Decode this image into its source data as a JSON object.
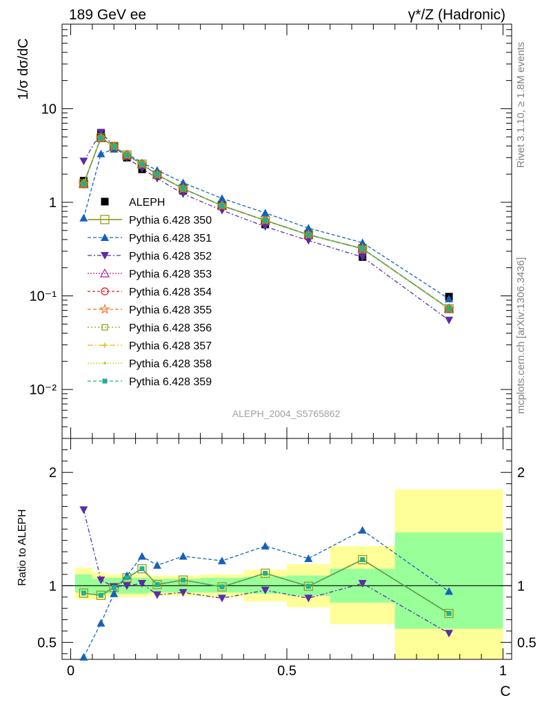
{
  "header": {
    "left": "189 GeV ee",
    "right": "γ*/Z (Hadronic)"
  },
  "side_text": {
    "top": "Rivet 3.1.10, ≥ 1.8M events",
    "bottom": "mcplots.cern.ch [arXiv:1306.3436]"
  },
  "watermark": "ALEPH_2004_S5765862",
  "chart_data": [
    {
      "type": "line",
      "panel": "main",
      "ylabel": "1/σ  dσ/dC",
      "yscale": "log",
      "ylim": [
        0.003,
        80
      ],
      "xlim": [
        -0.02,
        1.02
      ],
      "ytick_labels": [
        "10⁻²",
        "10⁻¹",
        "1",
        "10"
      ],
      "x": [
        0.03,
        0.07,
        0.1,
        0.13,
        0.165,
        0.2,
        0.26,
        0.35,
        0.45,
        0.55,
        0.675,
        0.875
      ],
      "series": [
        {
          "name": "ALEPH",
          "color": "#000000",
          "values": [
            1.7,
            5.4,
            4.0,
            3.0,
            2.25,
            1.95,
            1.33,
            0.93,
            0.58,
            0.45,
            0.26,
            0.098
          ]
        },
        {
          "name": "Pythia 6.428 350",
          "color": "#999922",
          "values": [
            1.58,
            4.9,
            3.95,
            3.2,
            2.55,
            1.97,
            1.4,
            0.92,
            0.64,
            0.45,
            0.32,
            0.073
          ]
        },
        {
          "name": "Pythia 6.428 351",
          "color": "#1560bd",
          "values": [
            0.68,
            3.3,
            3.7,
            3.3,
            2.65,
            2.2,
            1.62,
            1.1,
            0.77,
            0.53,
            0.37,
            0.093
          ]
        },
        {
          "name": "Pythia 6.428 352",
          "color": "#5a2ca8",
          "values": [
            2.75,
            5.6,
            3.98,
            3.0,
            2.3,
            1.8,
            1.23,
            0.82,
            0.55,
            0.39,
            0.26,
            0.055
          ]
        },
        {
          "name": "Pythia 6.428 353",
          "color": "#b01a8e",
          "values": [
            1.58,
            4.9,
            3.95,
            3.2,
            2.55,
            1.97,
            1.4,
            0.92,
            0.64,
            0.45,
            0.32,
            0.073
          ]
        },
        {
          "name": "Pythia 6.428 354",
          "color": "#e0191e",
          "values": [
            1.58,
            4.9,
            3.95,
            3.2,
            2.55,
            1.97,
            1.4,
            0.92,
            0.64,
            0.45,
            0.32,
            0.073
          ]
        },
        {
          "name": "Pythia 6.428 355",
          "color": "#f07020",
          "values": [
            1.58,
            4.9,
            3.95,
            3.2,
            2.55,
            1.97,
            1.4,
            0.92,
            0.64,
            0.45,
            0.32,
            0.073
          ]
        },
        {
          "name": "Pythia 6.428 356",
          "color": "#8a9a1a",
          "values": [
            1.58,
            4.9,
            3.95,
            3.2,
            2.55,
            1.97,
            1.4,
            0.92,
            0.64,
            0.45,
            0.32,
            0.073
          ]
        },
        {
          "name": "Pythia 6.428 357",
          "color": "#e8b800",
          "values": [
            1.58,
            4.9,
            3.95,
            3.2,
            2.55,
            1.97,
            1.4,
            0.92,
            0.64,
            0.45,
            0.32,
            0.073
          ]
        },
        {
          "name": "Pythia 6.428 358",
          "color": "#c8d020",
          "values": [
            1.58,
            4.9,
            3.95,
            3.2,
            2.55,
            1.97,
            1.4,
            0.92,
            0.64,
            0.45,
            0.32,
            0.073
          ]
        },
        {
          "name": "Pythia 6.428 359",
          "color": "#20b090",
          "values": [
            1.58,
            4.9,
            3.95,
            3.2,
            2.55,
            1.97,
            1.4,
            0.92,
            0.64,
            0.45,
            0.32,
            0.073
          ]
        }
      ]
    },
    {
      "type": "line",
      "panel": "ratio",
      "ylabel": "Ratio to ALEPH",
      "xlabel": "C",
      "ylim": [
        0.35,
        2.3
      ],
      "xlim": [
        -0.02,
        1.02
      ],
      "ytick_labels": [
        "0.5",
        "1",
        "2"
      ],
      "xtick_labels": [
        "0",
        "0.5",
        "1"
      ],
      "x": [
        0.03,
        0.07,
        0.1,
        0.13,
        0.165,
        0.2,
        0.26,
        0.35,
        0.45,
        0.55,
        0.675,
        0.875
      ],
      "bands": [
        {
          "x0": 0.01,
          "x1": 0.05,
          "stat": [
            0.94,
            1.1
          ],
          "total": [
            0.88,
            1.16
          ]
        },
        {
          "x0": 0.05,
          "x1": 0.08,
          "stat": [
            0.92,
            1.06
          ],
          "total": [
            0.88,
            1.12
          ]
        },
        {
          "x0": 0.08,
          "x1": 0.12,
          "stat": [
            0.93,
            1.07
          ],
          "total": [
            0.9,
            1.1
          ]
        },
        {
          "x0": 0.12,
          "x1": 0.15,
          "stat": [
            0.93,
            1.07
          ],
          "total": [
            0.9,
            1.1
          ]
        },
        {
          "x0": 0.15,
          "x1": 0.18,
          "stat": [
            0.93,
            1.07
          ],
          "total": [
            0.9,
            1.1
          ]
        },
        {
          "x0": 0.18,
          "x1": 0.22,
          "stat": [
            0.94,
            1.06
          ],
          "total": [
            0.91,
            1.09
          ]
        },
        {
          "x0": 0.22,
          "x1": 0.3,
          "stat": [
            0.94,
            1.06
          ],
          "total": [
            0.91,
            1.09
          ]
        },
        {
          "x0": 0.3,
          "x1": 0.4,
          "stat": [
            0.94,
            1.07
          ],
          "total": [
            0.9,
            1.1
          ]
        },
        {
          "x0": 0.4,
          "x1": 0.5,
          "stat": [
            0.93,
            1.08
          ],
          "total": [
            0.86,
            1.14
          ]
        },
        {
          "x0": 0.5,
          "x1": 0.6,
          "stat": [
            0.91,
            1.09
          ],
          "total": [
            0.81,
            1.19
          ]
        },
        {
          "x0": 0.6,
          "x1": 0.75,
          "stat": [
            0.85,
            1.15
          ],
          "total": [
            0.66,
            1.35
          ]
        },
        {
          "x0": 0.75,
          "x1": 1.0,
          "stat": [
            0.62,
            1.47
          ],
          "total": [
            0.35,
            1.85
          ]
        }
      ],
      "band_colors": {
        "stat": "#99ff99",
        "total": "#ffff99"
      },
      "series": [
        {
          "name": "Pythia 6.428 350",
          "values": [
            0.935,
            0.915,
            0.985,
            1.07,
            1.15,
            1.01,
            1.05,
            0.99,
            1.11,
            0.995,
            1.23,
            0.755
          ]
        },
        {
          "name": "Pythia 6.428 351",
          "values": [
            0.37,
            0.67,
            0.93,
            1.09,
            1.26,
            1.18,
            1.26,
            1.22,
            1.35,
            1.24,
            1.49,
            0.95
          ]
        },
        {
          "name": "Pythia 6.428 352",
          "values": [
            1.67,
            1.05,
            0.99,
            1.0,
            1.02,
            0.92,
            0.94,
            0.89,
            0.96,
            0.89,
            1.02,
            0.58
          ]
        },
        {
          "name": "Pythia 6.428 359",
          "values": [
            0.935,
            0.915,
            0.985,
            1.07,
            1.15,
            1.01,
            1.05,
            0.99,
            1.11,
            0.995,
            1.23,
            0.755
          ]
        }
      ]
    }
  ]
}
